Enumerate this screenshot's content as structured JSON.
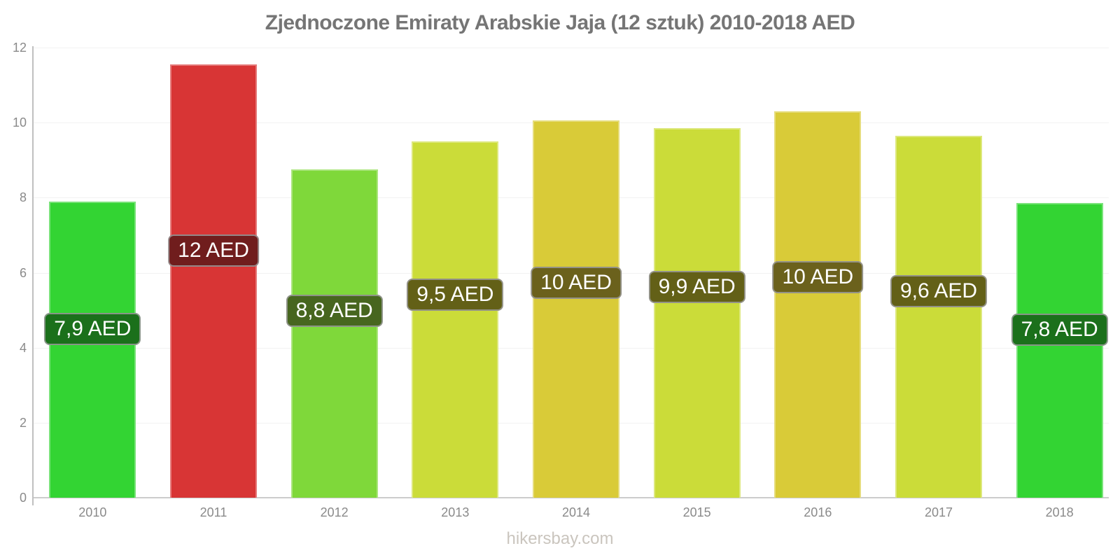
{
  "title": "Zjednoczone Emiraty Arabskie Jaja (12 sztuk) 2010-2018 AED",
  "footer": "hikersbay.com",
  "chart_data": {
    "type": "bar",
    "title": "Zjednoczone Emiraty Arabskie Jaja (12 sztuk) 2010-2018 AED",
    "xlabel": "",
    "ylabel": "",
    "unit": "AED",
    "categories": [
      "2010",
      "2011",
      "2012",
      "2013",
      "2014",
      "2015",
      "2016",
      "2017",
      "2018"
    ],
    "values": [
      7.9,
      11.55,
      8.75,
      9.5,
      10.05,
      9.85,
      10.3,
      9.65,
      7.85
    ],
    "bar_labels": [
      "7,9 AED",
      "12 AED",
      "8,8 AED",
      "9,5 AED",
      "10 AED",
      "9,9 AED",
      "10 AED",
      "9,6 AED",
      "7,8 AED"
    ],
    "bar_colors": [
      "#33d433",
      "#d83535",
      "#7fd83a",
      "#cbdc39",
      "#d9cb38",
      "#cbdc39",
      "#d9cb38",
      "#cbdc39",
      "#33d433"
    ],
    "label_bg_colors": [
      "#1b701b",
      "#701d1d",
      "#47661f",
      "#636017",
      "#6b611c",
      "#636017",
      "#6b611c",
      "#636017",
      "#1b701b"
    ],
    "ylim": [
      0,
      12
    ],
    "yticks": [
      0,
      2,
      4,
      6,
      8,
      10,
      12
    ],
    "grid": true,
    "legend": false,
    "watermark": "hikersbay.com"
  },
  "colors": {
    "background": "#ffffff",
    "title_text": "#757575",
    "axis_text": "#8a8a8a",
    "grid_line": "#f2f2f2",
    "baseline": "#cccccc",
    "axis_line": "#c0c0c0",
    "badge_text": "#ffffff",
    "badge_border": "#9b9b9b",
    "footer_text": "#cac5be"
  }
}
